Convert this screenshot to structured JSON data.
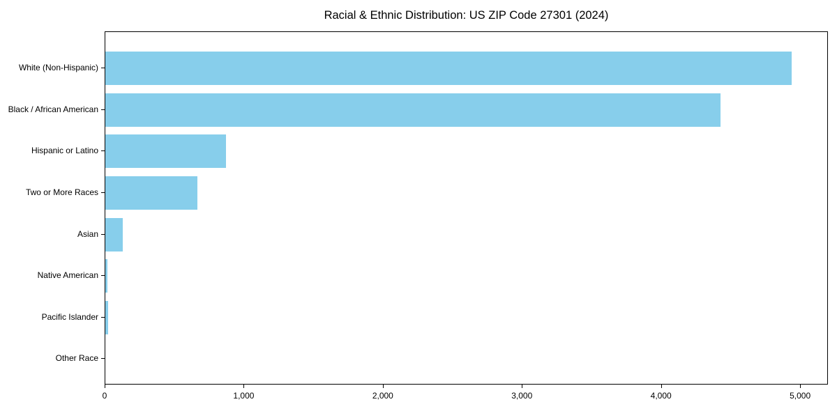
{
  "title": "Racial & Ethnic Distribution: US ZIP Code 27301 (2024)",
  "colors": {
    "bar": "#87CEEB",
    "axis": "#000000",
    "text": "#000000",
    "background": "#FFFFFF"
  },
  "chart_data": {
    "type": "bar",
    "orientation": "horizontal",
    "title": "Racial & Ethnic Distribution: US ZIP Code 27301 (2024)",
    "categories": [
      "White (Non-Hispanic)",
      "Black / African American",
      "Hispanic or Latino",
      "Two or More Races",
      "Asian",
      "Native American",
      "Pacific Islander",
      "Other Race"
    ],
    "values": [
      4945,
      4430,
      870,
      665,
      125,
      15,
      18,
      0
    ],
    "xlabel": "",
    "ylabel": "",
    "xlim": [
      0,
      5200
    ],
    "xticks": [
      0,
      1000,
      2000,
      3000,
      4000,
      5000
    ],
    "xtick_labels": [
      "0",
      "1,000",
      "2,000",
      "3,000",
      "4,000",
      "5,000"
    ],
    "grid": false,
    "legend": null,
    "bar_color": "#87CEEB"
  }
}
